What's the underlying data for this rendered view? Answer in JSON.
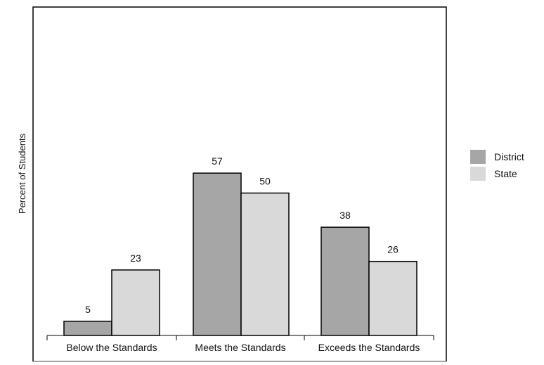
{
  "chart_data": {
    "type": "bar",
    "title": "",
    "xlabel": "",
    "ylabel": "Percent of Students",
    "categories": [
      "Below the Standards",
      "Meets the Standards",
      "Exceeds the Standards"
    ],
    "series": [
      {
        "name": "District",
        "values": [
          5,
          57,
          38
        ],
        "color": "#a6a6a6"
      },
      {
        "name": "State",
        "values": [
          23,
          50,
          26
        ],
        "color": "#d9d9d9"
      }
    ],
    "ylim": [
      0,
      100
    ],
    "grid": false,
    "legend_position": "right",
    "data_labels": true
  }
}
